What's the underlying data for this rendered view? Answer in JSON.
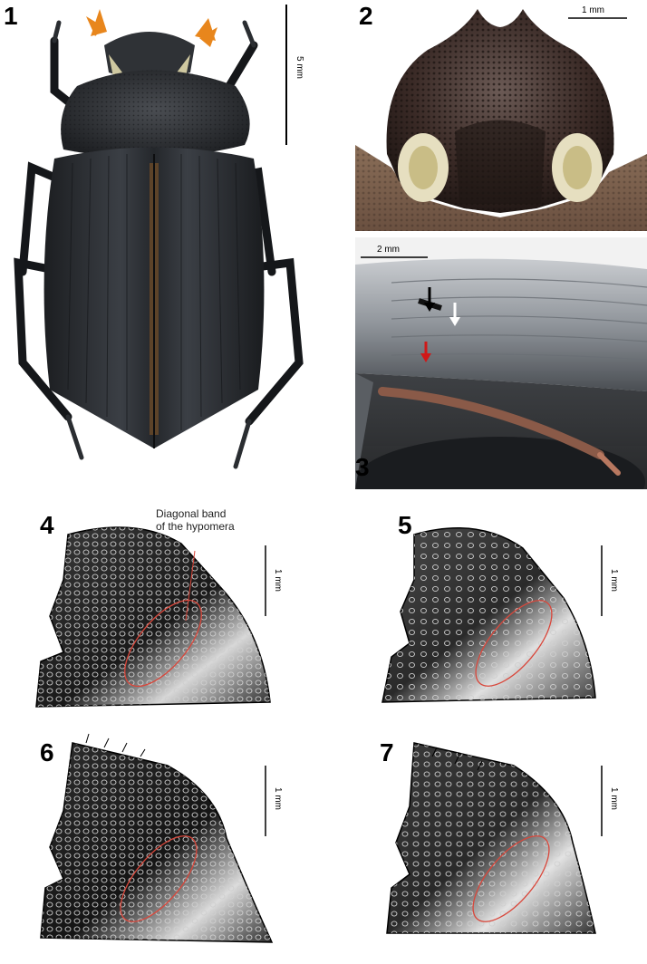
{
  "figure": {
    "panels": [
      {
        "label": "1",
        "scale": "5 mm"
      },
      {
        "label": "2",
        "scale": "1 mm"
      },
      {
        "label": "3",
        "scale": "2 mm"
      },
      {
        "label": "4",
        "scale": "1 mm",
        "annotation_line1": "Diagonal band",
        "annotation_line2": "of the hypomera"
      },
      {
        "label": "5",
        "scale": "1 mm"
      },
      {
        "label": "6",
        "scale": "1 mm"
      },
      {
        "label": "7",
        "scale": "1 mm"
      }
    ],
    "colors": {
      "beetle_body": "#2a2d31",
      "head_plate": "#3a2a26",
      "band_ellipse": "#d9473b",
      "arrow_black": "#000000",
      "arrow_white": "#ffffff",
      "arrow_red": "#d01818",
      "antenna_orange": "#e8861c"
    },
    "icons": [
      "beetle-dorsal-photo",
      "head-closeup-photo",
      "elytra-lateral-photo",
      "hypomeron-drawing"
    ]
  }
}
